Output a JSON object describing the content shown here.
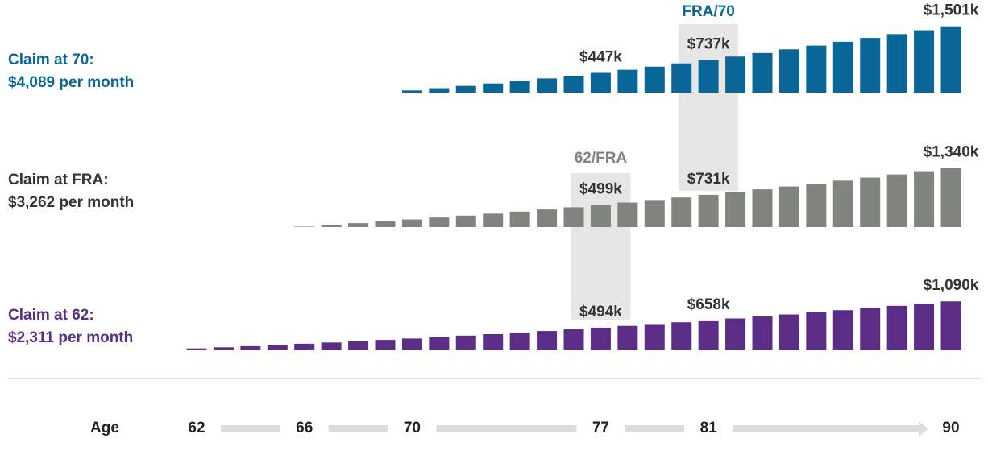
{
  "chart_data": [
    {
      "type": "bar",
      "title": "Claim at 70:",
      "subtitle": "$4,089 per month",
      "color": "#0b6698",
      "label_color": "#0b6698",
      "x": [
        70,
        71,
        72,
        73,
        74,
        75,
        76,
        77,
        78,
        79,
        80,
        81,
        82,
        83,
        84,
        85,
        86,
        87,
        88,
        89,
        90
      ],
      "values": [
        49,
        100,
        152,
        206,
        262,
        321,
        383,
        447,
        517,
        588,
        661,
        737,
        816,
        897,
        980,
        1065,
        1151,
        1238,
        1325,
        1413,
        1501
      ],
      "value_labels": [
        null,
        null,
        null,
        null,
        null,
        null,
        null,
        "$447k",
        null,
        null,
        null,
        "$737k",
        null,
        null,
        null,
        null,
        null,
        null,
        null,
        null,
        "$1,501k"
      ],
      "ylim": [
        0,
        1550
      ]
    },
    {
      "type": "bar",
      "title": "Claim at FRA:",
      "subtitle": "$3,262 per month",
      "color": "#80837e",
      "label_color": "#333333",
      "x": [
        66,
        67,
        68,
        69,
        70,
        71,
        72,
        73,
        74,
        75,
        76,
        77,
        78,
        79,
        80,
        81,
        82,
        83,
        84,
        85,
        86,
        87,
        88,
        89,
        90
      ],
      "values": [
        10,
        49,
        89,
        130,
        172,
        215,
        259,
        304,
        350,
        399,
        448,
        499,
        556,
        613,
        671,
        731,
        792,
        855,
        919,
        985,
        1052,
        1121,
        1192,
        1265,
        1340
      ],
      "value_labels": [
        null,
        null,
        null,
        null,
        null,
        null,
        null,
        null,
        null,
        null,
        null,
        "$499k",
        null,
        null,
        null,
        "$731k",
        null,
        null,
        null,
        null,
        null,
        null,
        null,
        null,
        "$1,340k"
      ],
      "ylim": [
        0,
        1550
      ]
    },
    {
      "type": "bar",
      "title": "Claim at 62:",
      "subtitle": "$2,311 per month",
      "color": "#5b2d86",
      "label_color": "#5b2d86",
      "x": [
        62,
        63,
        64,
        65,
        66,
        67,
        68,
        69,
        70,
        71,
        72,
        73,
        74,
        75,
        76,
        77,
        78,
        79,
        80,
        81,
        82,
        83,
        84,
        85,
        86,
        87,
        88,
        89,
        90
      ],
      "values": [
        24,
        49,
        75,
        102,
        130,
        158,
        187,
        217,
        248,
        280,
        313,
        347,
        382,
        418,
        455,
        494,
        534,
        575,
        616,
        658,
        702,
        747,
        793,
        840,
        889,
        938,
        988,
        1039,
        1090
      ],
      "value_labels": [
        null,
        null,
        null,
        null,
        null,
        null,
        null,
        null,
        null,
        null,
        null,
        null,
        null,
        null,
        null,
        "$494k",
        null,
        null,
        null,
        "$658k",
        null,
        null,
        null,
        null,
        null,
        null,
        null,
        null,
        "$1,090k"
      ],
      "ylim": [
        0,
        1550
      ]
    }
  ],
  "highlights": [
    {
      "label": "FRA/70",
      "x": 81,
      "color": "#0b6698"
    },
    {
      "label": "62/FRA",
      "x": 77,
      "color": "#80837e"
    }
  ],
  "axis": {
    "label": "Age",
    "xlim": [
      62,
      90
    ],
    "xticks": [
      62,
      66,
      70,
      77,
      81,
      90
    ]
  }
}
